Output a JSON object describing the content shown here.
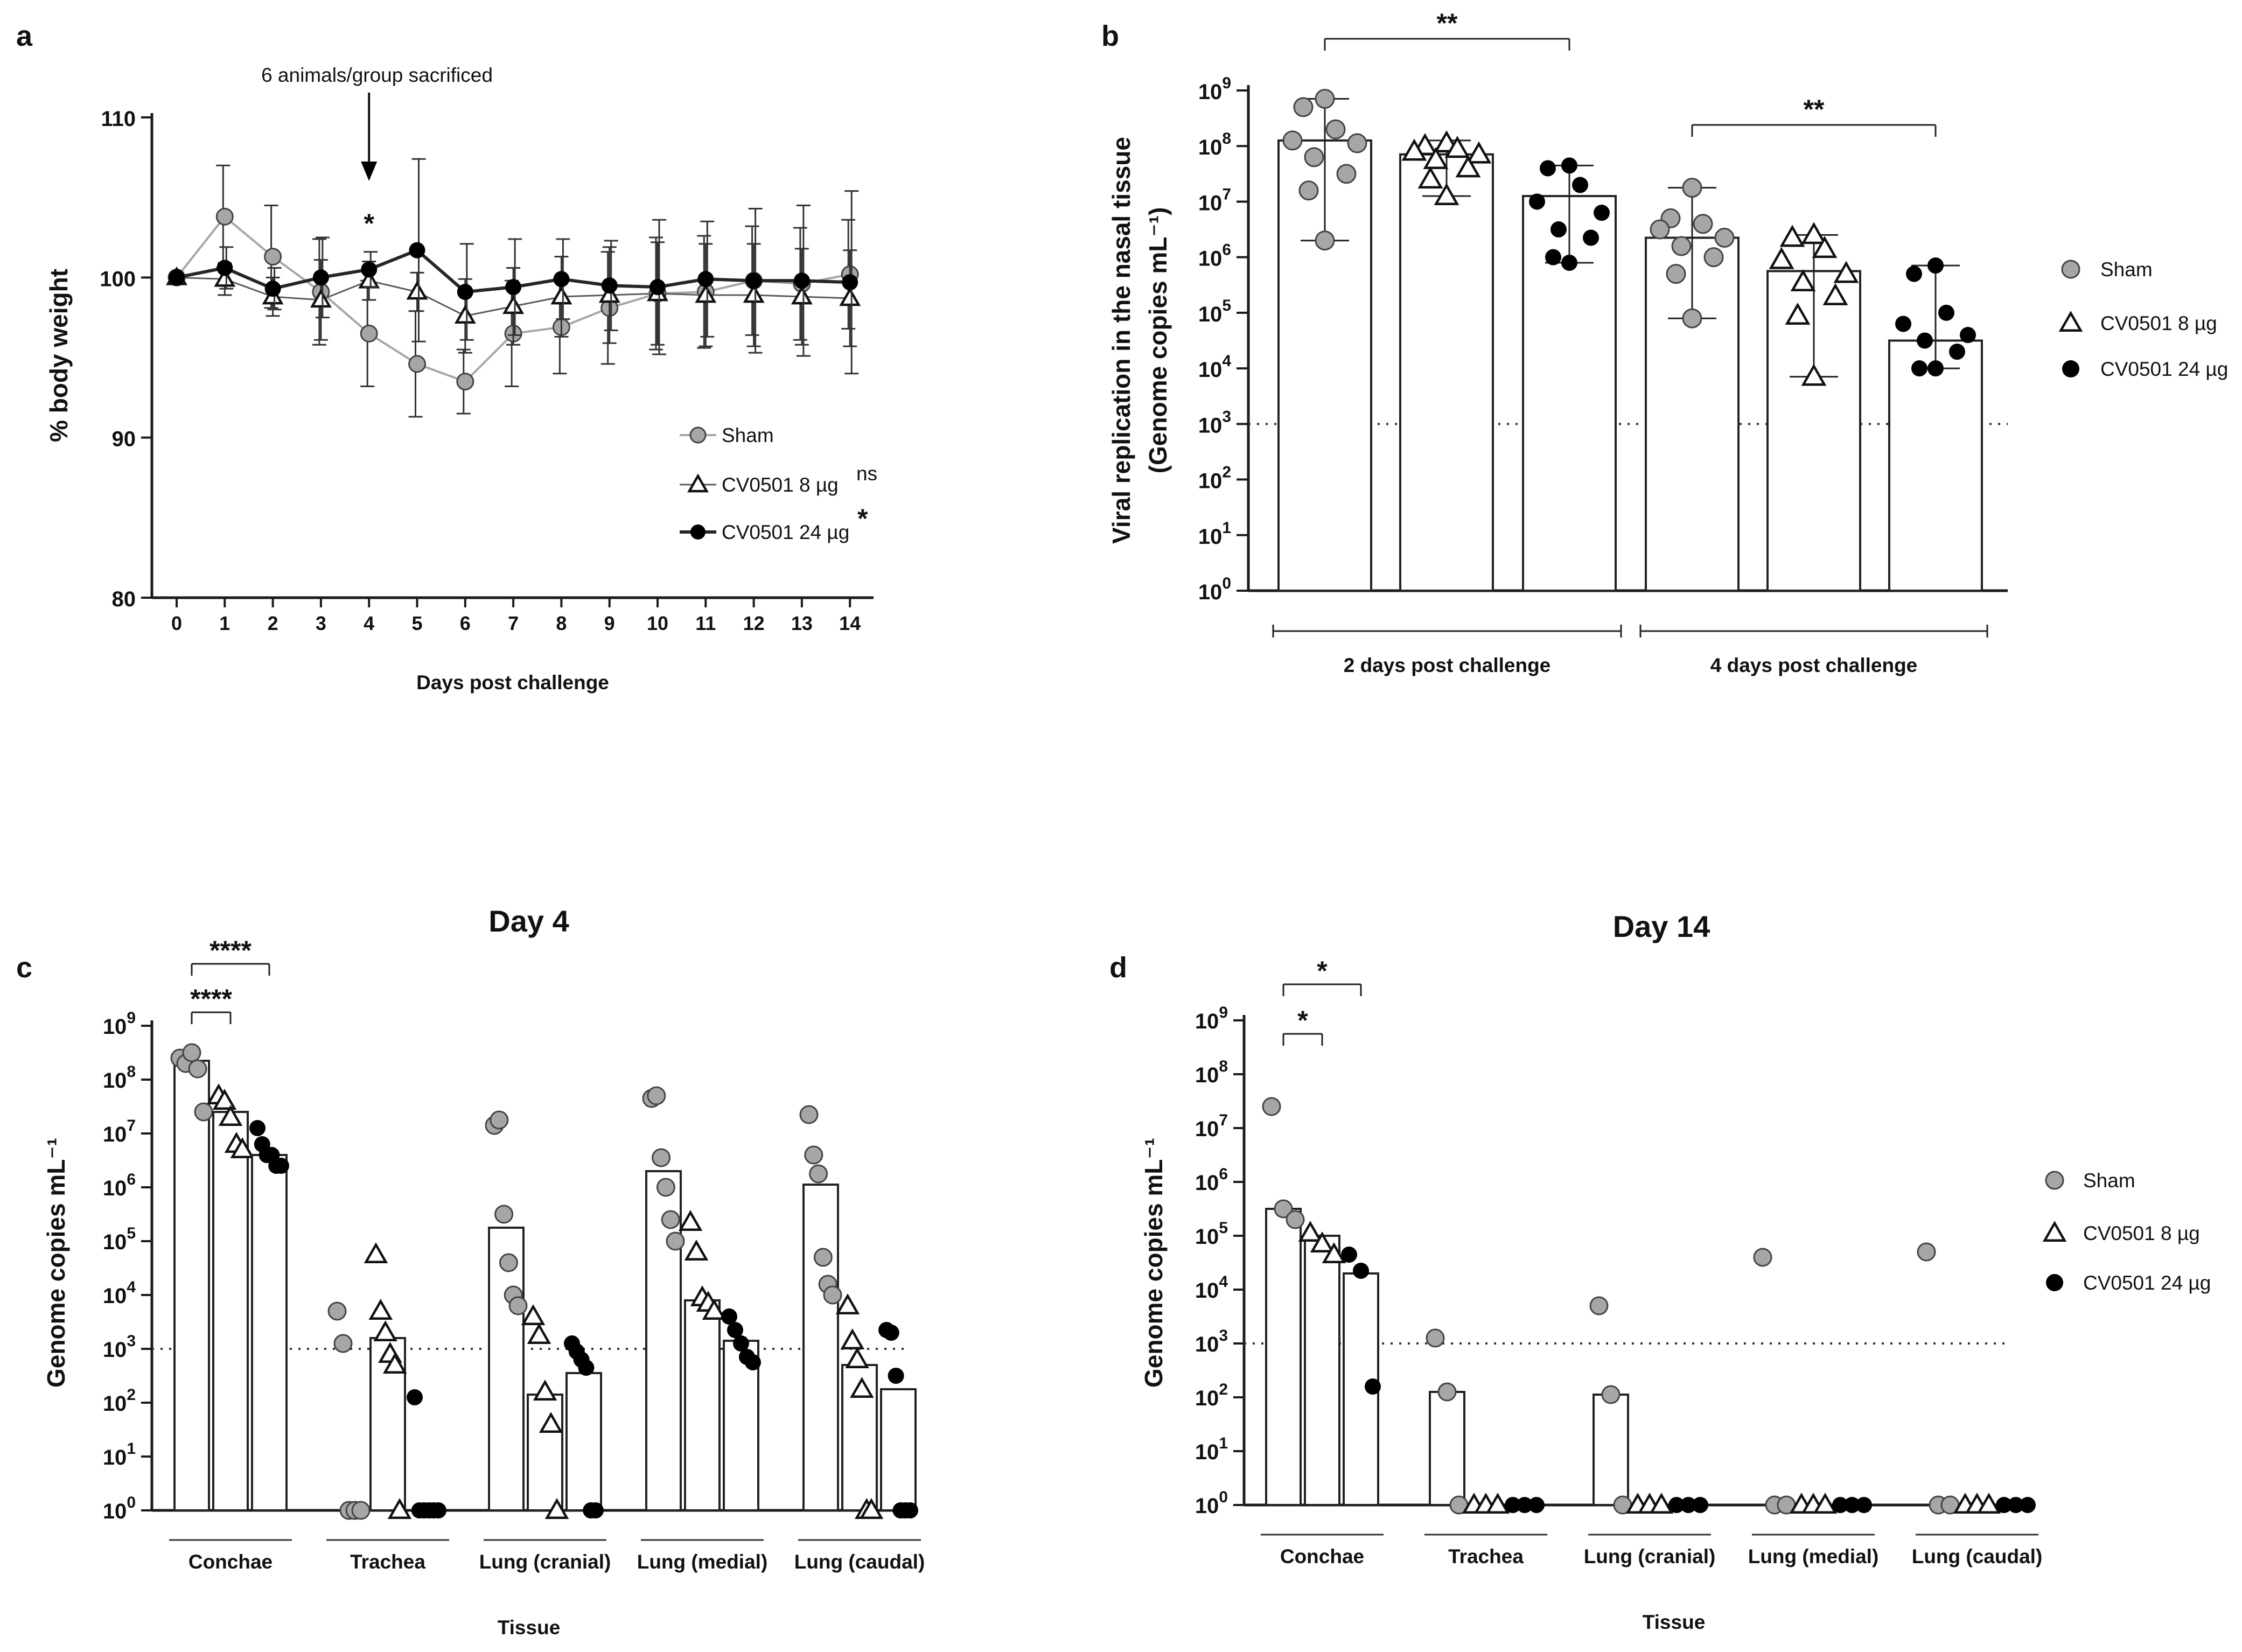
{
  "panel_labels": [
    "a",
    "b",
    "c",
    "d"
  ],
  "colors": {
    "sham": "#a6a6a6",
    "cv8": "#ffffff",
    "cv24": "#000000",
    "axis": "#1a1a1a",
    "line_sham": "#a6a6a6",
    "line_cv8": "#5c5c5c",
    "line_cv24": "#262626"
  },
  "chart_data": [
    {
      "id": "a",
      "type": "line",
      "xlabel": "Days post challenge",
      "ylabel": "% body weight",
      "x": [
        0,
        1,
        2,
        3,
        4,
        5,
        6,
        7,
        8,
        9,
        10,
        11,
        12,
        13,
        14
      ],
      "xticks": [
        "0",
        "1",
        "2",
        "3",
        "4",
        "5",
        "6",
        "7",
        "8",
        "9",
        "10",
        "11",
        "12",
        "13",
        "14"
      ],
      "ylim": [
        80,
        110
      ],
      "yticks": [
        "80",
        "90",
        "100",
        "110"
      ],
      "annotation": "6 animals/group sacrificed",
      "annotation_day": 4,
      "star_day4": "*",
      "series": [
        {
          "name": "Sham",
          "marker": "circle-grey",
          "values": [
            100,
            103.8,
            101.3,
            99.1,
            96.5,
            94.6,
            93.5,
            96.5,
            96.9,
            98.1,
            99.0,
            99.1,
            99.8,
            99.6,
            100.2
          ],
          "err": [
            0,
            3.2,
            3.2,
            3.3,
            3.3,
            3.3,
            2.0,
            3.3,
            2.9,
            3.5,
            3.5,
            3.5,
            3.4,
            3.5,
            3.4
          ]
        },
        {
          "name": "CV0501 8 µg",
          "superscript": "ns",
          "marker": "triangle-open",
          "values": [
            100,
            99.9,
            98.8,
            98.6,
            99.8,
            99.1,
            97.6,
            98.2,
            98.8,
            98.9,
            99.0,
            98.9,
            98.9,
            98.8,
            98.7
          ],
          "err": [
            0,
            1.0,
            1.2,
            2.5,
            1.2,
            1.2,
            2.3,
            2.4,
            2.5,
            3.0,
            3.2,
            3.2,
            3.2,
            3.0,
            3.0
          ]
        },
        {
          "name": "CV0501 24 µg",
          "superscript": "*",
          "marker": "circle-black",
          "values": [
            100,
            100.6,
            99.3,
            100.0,
            100.5,
            101.7,
            99.1,
            99.4,
            99.9,
            99.5,
            99.4,
            99.9,
            99.8,
            99.8,
            99.7
          ],
          "err": [
            0,
            1.3,
            1.3,
            2.5,
            1.1,
            5.7,
            3.0,
            3.0,
            2.5,
            2.8,
            4.2,
            3.6,
            4.5,
            4.7,
            5.7
          ]
        }
      ]
    },
    {
      "id": "b",
      "type": "bar",
      "ylabel_line1": "Viral replication in the nasal tissue",
      "ylabel_line2": "(Genome copies mL⁻¹)",
      "yscale": "log10",
      "ylim_exp": [
        0,
        9
      ],
      "yticks": [
        "10⁰",
        "10¹",
        "10²",
        "10³",
        "10⁴",
        "10⁵",
        "10⁶",
        "10⁷",
        "10⁸",
        "10⁹"
      ],
      "lod_exp": 3,
      "groups": [
        {
          "label": "2 days post challenge",
          "series": [
            {
              "name": "Sham",
              "median_exp": 8.1,
              "range_exp": [
                6.3,
                8.85
              ],
              "points_exp": [
                8.85,
                8.7,
                8.3,
                8.1,
                8.05,
                7.8,
                7.5,
                7.2,
                6.3
              ]
            },
            {
              "name": "CV0501 8 µg",
              "median_exp": 7.85,
              "range_exp": [
                7.1,
                8.1
              ],
              "points_exp": [
                8.05,
                8.0,
                7.95,
                7.9,
                7.85,
                7.75,
                7.6,
                7.4,
                7.1
              ]
            },
            {
              "name": "CV0501 24 µg",
              "median_exp": 7.1,
              "range_exp": [
                5.9,
                7.65
              ],
              "points_exp": [
                7.65,
                7.6,
                7.3,
                7.0,
                6.8,
                6.5,
                6.35,
                6.0,
                5.9
              ]
            }
          ]
        },
        {
          "label": "4 days post challenge",
          "series": [
            {
              "name": "Sham",
              "median_exp": 6.35,
              "range_exp": [
                4.9,
                7.25
              ],
              "points_exp": [
                7.25,
                6.7,
                6.6,
                6.5,
                6.35,
                6.2,
                6.0,
                5.7,
                4.9
              ]
            },
            {
              "name": "CV0501 8 µg",
              "median_exp": 5.75,
              "range_exp": [
                3.85,
                6.4
              ],
              "points_exp": [
                6.4,
                6.35,
                6.15,
                5.95,
                5.7,
                5.55,
                5.3,
                4.95,
                3.85
              ]
            },
            {
              "name": "CV0501 24 µg",
              "median_exp": 4.5,
              "range_exp": [
                4.0,
                5.85
              ],
              "points_exp": [
                5.85,
                5.7,
                5.0,
                4.8,
                4.6,
                4.5,
                4.3,
                4.0,
                4.0
              ]
            }
          ]
        }
      ],
      "significance": [
        {
          "label": "**",
          "group": 0,
          "from": 0,
          "to": 2
        },
        {
          "label": "**",
          "group": 1,
          "from": 0,
          "to": 2
        }
      ]
    },
    {
      "id": "c",
      "type": "bar",
      "title": "Day 4",
      "ylabel": "Genome copies mL⁻¹",
      "xlabel": "Tissue",
      "yscale": "log10",
      "ylim_exp": [
        0,
        9
      ],
      "yticks": [
        "10⁰",
        "10¹",
        "10²",
        "10³",
        "10⁴",
        "10⁵",
        "10⁶",
        "10⁷",
        "10⁸",
        "10⁹"
      ],
      "lod_exp": 3,
      "categories": [
        "Conchae",
        "Trachea",
        "Lung (cranial)",
        "Lung (medial)",
        "Lung (caudal)"
      ],
      "series_names": [
        "Sham",
        "CV0501 8 µg",
        "CV0501 24 µg"
      ],
      "bars_exp": [
        [
          8.35,
          7.4,
          6.6
        ],
        [
          0,
          3.2,
          0
        ],
        [
          5.25,
          2.15,
          2.55
        ],
        [
          6.3,
          3.9,
          3.15
        ],
        [
          6.05,
          2.7,
          2.25
        ]
      ],
      "points_exp": [
        [
          [
            8.4,
            8.3,
            8.5,
            8.2,
            7.4
          ],
          [
            7.7,
            7.6,
            7.3,
            6.8,
            6.7
          ],
          [
            7.1,
            6.8,
            6.6,
            6.6,
            6.4,
            6.4
          ]
        ],
        [
          [
            3.7,
            3.1,
            0,
            0,
            0
          ],
          [
            4.75,
            3.7,
            3.3,
            2.9,
            2.7,
            0
          ],
          [
            2.1,
            0,
            0,
            0,
            0,
            0
          ]
        ],
        [
          [
            7.15,
            7.25,
            5.5,
            4.6,
            4.0,
            3.8
          ],
          [
            3.6,
            3.25,
            2.2,
            1.6,
            0
          ],
          [
            3.1,
            2.95,
            2.8,
            2.65,
            0,
            0
          ]
        ],
        [
          [
            7.65,
            7.7,
            6.55,
            6.0,
            5.4,
            5.0
          ],
          [
            5.35,
            4.8,
            3.95,
            3.85,
            3.7
          ],
          [
            3.6,
            3.35,
            3.1,
            2.85,
            2.75
          ]
        ],
        [
          [
            7.35,
            6.6,
            6.25,
            4.7,
            4.2,
            4.0
          ],
          [
            3.8,
            3.15,
            2.8,
            2.25,
            0,
            0
          ],
          [
            3.35,
            3.3,
            2.5,
            0,
            0,
            0
          ]
        ]
      ],
      "significance": [
        {
          "label": "****",
          "category": 0,
          "from": 0,
          "to": 1
        },
        {
          "label": "****",
          "category": 0,
          "from": 0,
          "to": 2
        }
      ]
    },
    {
      "id": "d",
      "type": "bar",
      "title": "Day 14",
      "ylabel": "Genome copies mL⁻¹",
      "xlabel": "Tissue",
      "yscale": "log10",
      "ylim_exp": [
        0,
        9
      ],
      "yticks": [
        "10⁰",
        "10¹",
        "10²",
        "10³",
        "10⁴",
        "10⁵",
        "10⁶",
        "10⁷",
        "10⁸",
        "10⁹"
      ],
      "lod_exp": 3,
      "categories": [
        "Conchae",
        "Trachea",
        "Lung (cranial)",
        "Lung (medial)",
        "Lung (caudal)"
      ],
      "series_names": [
        "Sham",
        "CV0501 8 µg",
        "CV0501 24 µg"
      ],
      "bars_exp": [
        [
          5.5,
          5.0,
          4.3
        ],
        [
          2.1,
          0,
          0
        ],
        [
          2.05,
          0,
          0
        ],
        [
          0,
          0,
          0
        ],
        [
          0,
          0,
          0
        ]
      ],
      "points_exp": [
        [
          [
            7.4,
            5.5,
            5.3
          ],
          [
            5.05,
            4.85,
            4.65
          ],
          [
            4.65,
            4.35,
            2.2
          ]
        ],
        [
          [
            3.1,
            2.1,
            0
          ],
          [
            0,
            0,
            0
          ],
          [
            0,
            0,
            0
          ]
        ],
        [
          [
            3.7,
            2.05,
            0
          ],
          [
            0,
            0,
            0
          ],
          [
            0,
            0,
            0
          ]
        ],
        [
          [
            4.6,
            0,
            0
          ],
          [
            0,
            0,
            0
          ],
          [
            0,
            0,
            0
          ]
        ],
        [
          [
            4.7,
            0,
            0
          ],
          [
            0,
            0,
            0
          ],
          [
            0,
            0,
            0
          ]
        ]
      ],
      "significance": [
        {
          "label": "*",
          "category": 0,
          "from": 0,
          "to": 1
        },
        {
          "label": "*",
          "category": 0,
          "from": 0,
          "to": 2
        }
      ]
    }
  ],
  "legend_ab": [
    "Sham",
    "CV0501 8 µg",
    "CV0501 24 µg"
  ]
}
